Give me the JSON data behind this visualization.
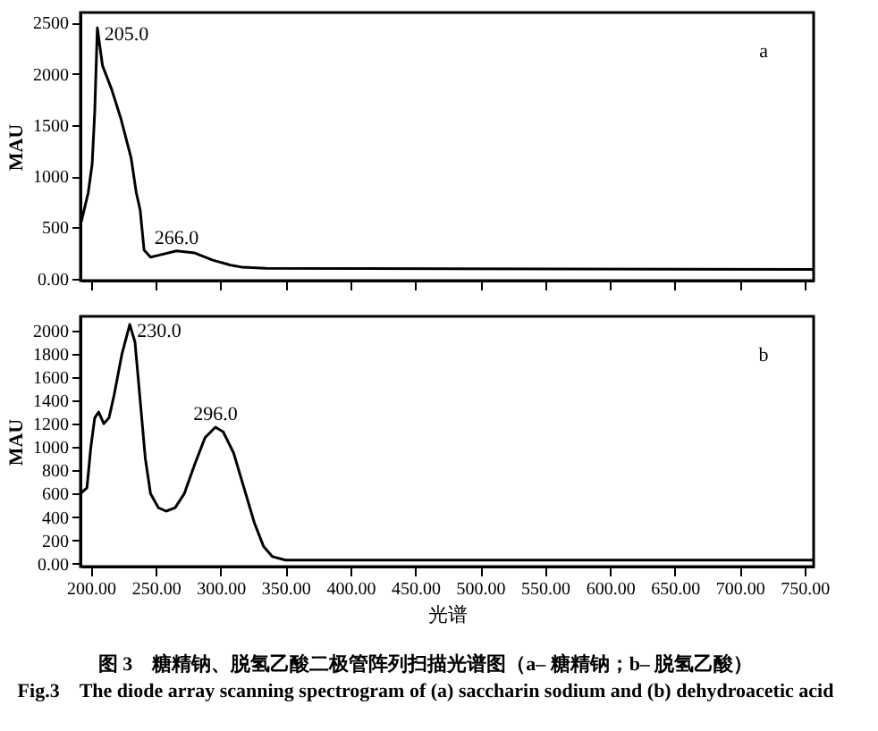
{
  "chart_data": [
    {
      "type": "line",
      "ylabel": "MAU",
      "xlim": [
        192,
        757
      ],
      "ylim": [
        -20,
        2600
      ],
      "xticks": [
        {
          "value": 200,
          "label": null
        },
        {
          "value": 250,
          "label": null
        },
        {
          "value": 300,
          "label": null
        },
        {
          "value": 350,
          "label": null
        },
        {
          "value": 400,
          "label": null
        },
        {
          "value": 450,
          "label": null
        },
        {
          "value": 500,
          "label": null
        },
        {
          "value": 550,
          "label": null
        },
        {
          "value": 600,
          "label": null
        },
        {
          "value": 650,
          "label": null
        },
        {
          "value": 700,
          "label": null
        },
        {
          "value": 750,
          "label": null
        }
      ],
      "yticks": [
        {
          "value": 0,
          "label": "0.00"
        },
        500,
        1000,
        1500,
        2000,
        2500
      ],
      "tick_labels": "y",
      "grid": false,
      "marker": "none",
      "line_style": "solid",
      "x": [
        192,
        198,
        201,
        203,
        205,
        209,
        216,
        223,
        231,
        235,
        238,
        241,
        246,
        253,
        266,
        280,
        294,
        308,
        317,
        335,
        757
      ],
      "series": [
        {
          "color": "#000000",
          "values": [
            520,
            840,
            1120,
            1630,
            2450,
            2080,
            1850,
            1570,
            1180,
            840,
            670,
            280,
            210,
            230,
            270,
            250,
            180,
            130,
            110,
            100,
            90
          ]
        }
      ],
      "annotations": [
        {
          "text": "205.0",
          "x": 205,
          "y": 2450
        },
        {
          "text": "266.0",
          "x": 266,
          "y": 270
        },
        "a"
      ]
    },
    {
      "type": "line",
      "ylabel": "MAU",
      "xlabel": "光谱",
      "xlim": [
        192,
        757
      ],
      "ylim": [
        -25,
        2120
      ],
      "xticks": [
        {
          "value": 200,
          "label": "200.00"
        },
        {
          "value": 250,
          "label": "250.00"
        },
        {
          "value": 300,
          "label": "300.00"
        },
        {
          "value": 350,
          "label": "350.00"
        },
        {
          "value": 400,
          "label": "400.00"
        },
        {
          "value": 450,
          "label": "450.00"
        },
        {
          "value": 500,
          "label": "500.00"
        },
        {
          "value": 550,
          "label": "550.00"
        },
        {
          "value": 600,
          "label": "600.00"
        },
        {
          "value": 650,
          "label": "650.00"
        },
        {
          "value": 700,
          "label": "700.00"
        },
        {
          "value": 750,
          "label": "750.00"
        }
      ],
      "yticks": [
        {
          "value": 0,
          "label": "0.00"
        },
        200,
        400,
        600,
        800,
        1000,
        1200,
        1400,
        1600,
        1800,
        2000
      ],
      "grid": false,
      "marker": "none",
      "line_style": "solid",
      "x": [
        192,
        197,
        200,
        203,
        206,
        210,
        214,
        218,
        224,
        230,
        234,
        238,
        242,
        246,
        252,
        258,
        265,
        272,
        280,
        288,
        296,
        302,
        310,
        318,
        326,
        333,
        340,
        350,
        757
      ],
      "series": [
        {
          "color": "#000000",
          "values": [
            600,
            650,
            1000,
            1250,
            1300,
            1200,
            1250,
            1450,
            1800,
            2050,
            1900,
            1400,
            900,
            600,
            480,
            450,
            480,
            600,
            850,
            1080,
            1170,
            1130,
            950,
            650,
            350,
            150,
            60,
            30,
            30
          ]
        }
      ],
      "annotations": [
        {
          "text": "230.0",
          "x": 230,
          "y": 2050
        },
        {
          "text": "296.0",
          "x": 296,
          "y": 1170
        },
        "b",
        "图 3　糖精钠、脱氢乙酸二极管阵列扫描光谱图（a– 糖精钠；b– 脱氢乙酸）",
        "Fig.3　The diode array scanning spectrogram of (a) saccharin sodium and (b) dehydroacetic acid"
      ]
    }
  ]
}
